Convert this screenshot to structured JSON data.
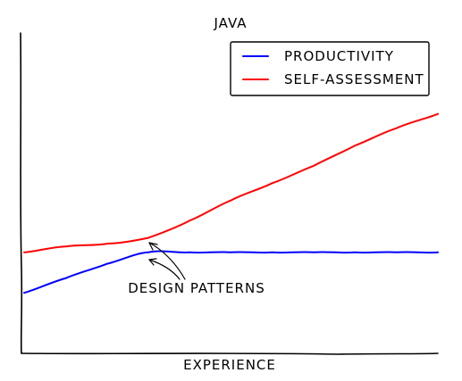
{
  "chart_data": {
    "type": "line",
    "title": "JAVA",
    "xlabel": "EXPERIENCE",
    "ylabel": "",
    "x": [
      0,
      10,
      20,
      30,
      40,
      50,
      60,
      70,
      80,
      90,
      100
    ],
    "series": [
      {
        "name": "PRODUCTIVITY",
        "color": "#0000ff",
        "values": [
          10,
          15,
          20,
          24,
          24,
          24,
          24,
          24,
          24,
          24,
          24
        ]
      },
      {
        "name": "SELF-ASSESSMENT",
        "color": "#ff0000",
        "values": [
          24,
          26,
          27,
          29,
          35,
          42,
          48,
          54,
          61,
          67,
          72
        ]
      }
    ],
    "xlim": [
      0,
      100
    ],
    "ylim": [
      -11,
      100
    ],
    "grid": false,
    "legend_position": "top-right",
    "annotation": {
      "text": "DESIGN PATTERNS",
      "x": 30
    }
  }
}
